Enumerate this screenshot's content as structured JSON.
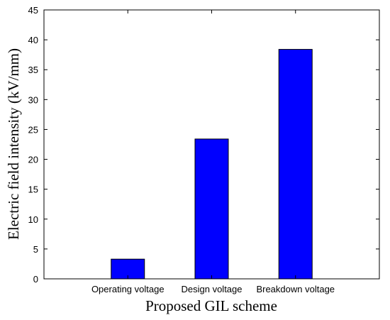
{
  "chart_data": {
    "type": "bar",
    "categories": [
      "Operating voltage",
      "Design voltage",
      "Breakdown voltage"
    ],
    "values": [
      3.3,
      23.4,
      38.4
    ],
    "xlabel": "Proposed GIL scheme",
    "ylabel": "Electric field intensity (kV/mm)",
    "ylim": [
      0,
      45
    ],
    "yticks": [
      0,
      5,
      10,
      15,
      20,
      25,
      30,
      35,
      40,
      45
    ],
    "bar_color": "#0000ff",
    "bar_edge_color": "#000000",
    "grid": false,
    "legend": "none"
  }
}
